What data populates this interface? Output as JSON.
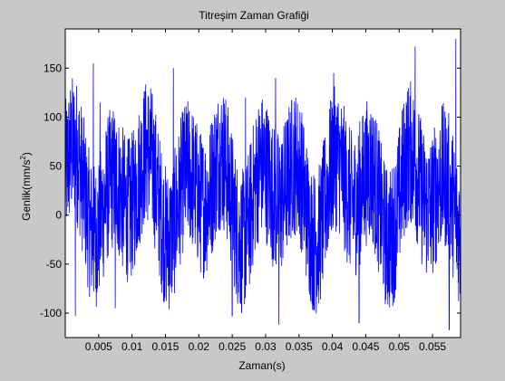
{
  "chart_data": {
    "type": "line",
    "title": "Titreşim Zaman Grafiği",
    "xlabel": "Zaman(s)",
    "ylabel": "Genlik(mm/s",
    "ylabel_sup": "2",
    "ylabel_close": ")",
    "xlim": [
      0,
      0.0592
    ],
    "ylim": [
      -125,
      190
    ],
    "xticks": [
      0.005,
      0.01,
      0.015,
      0.02,
      0.025,
      0.03,
      0.035,
      0.04,
      0.045,
      0.05,
      0.055
    ],
    "xtick_labels": [
      "0.005",
      "0.01",
      "0.015",
      "0.02",
      "0.025",
      "0.03",
      "0.035",
      "0.04",
      "0.045",
      "0.05",
      "0.055"
    ],
    "yticks": [
      -100,
      -50,
      0,
      50,
      100,
      150
    ],
    "ytick_labels": [
      "-100",
      "-50",
      "0",
      "50",
      "100",
      "150"
    ],
    "grid": false,
    "colors": {
      "series": "#0000ff",
      "figure_bg": "#c8c8c8",
      "axes_bg": "#ffffff"
    },
    "series": [
      {
        "x_start": 0,
        "x_step": 2.96e-05,
        "samples": 2000,
        "envelope_max": 180,
        "envelope_min": -118,
        "peaks": [
          {
            "x": 0.0042,
            "y": 155
          },
          {
            "x": 0.0052,
            "y": 115
          },
          {
            "x": 0.0162,
            "y": 150
          },
          {
            "x": 0.027,
            "y": 120
          },
          {
            "x": 0.0315,
            "y": 140
          },
          {
            "x": 0.0402,
            "y": 145
          },
          {
            "x": 0.0524,
            "y": 172
          },
          {
            "x": 0.0585,
            "y": 180
          }
        ],
        "troughs": [
          {
            "x": 0.0015,
            "y": -103
          },
          {
            "x": 0.0075,
            "y": -95
          },
          {
            "x": 0.025,
            "y": -103
          },
          {
            "x": 0.032,
            "y": -112
          },
          {
            "x": 0.044,
            "y": -110
          },
          {
            "x": 0.0575,
            "y": -117
          }
        ]
      }
    ]
  }
}
